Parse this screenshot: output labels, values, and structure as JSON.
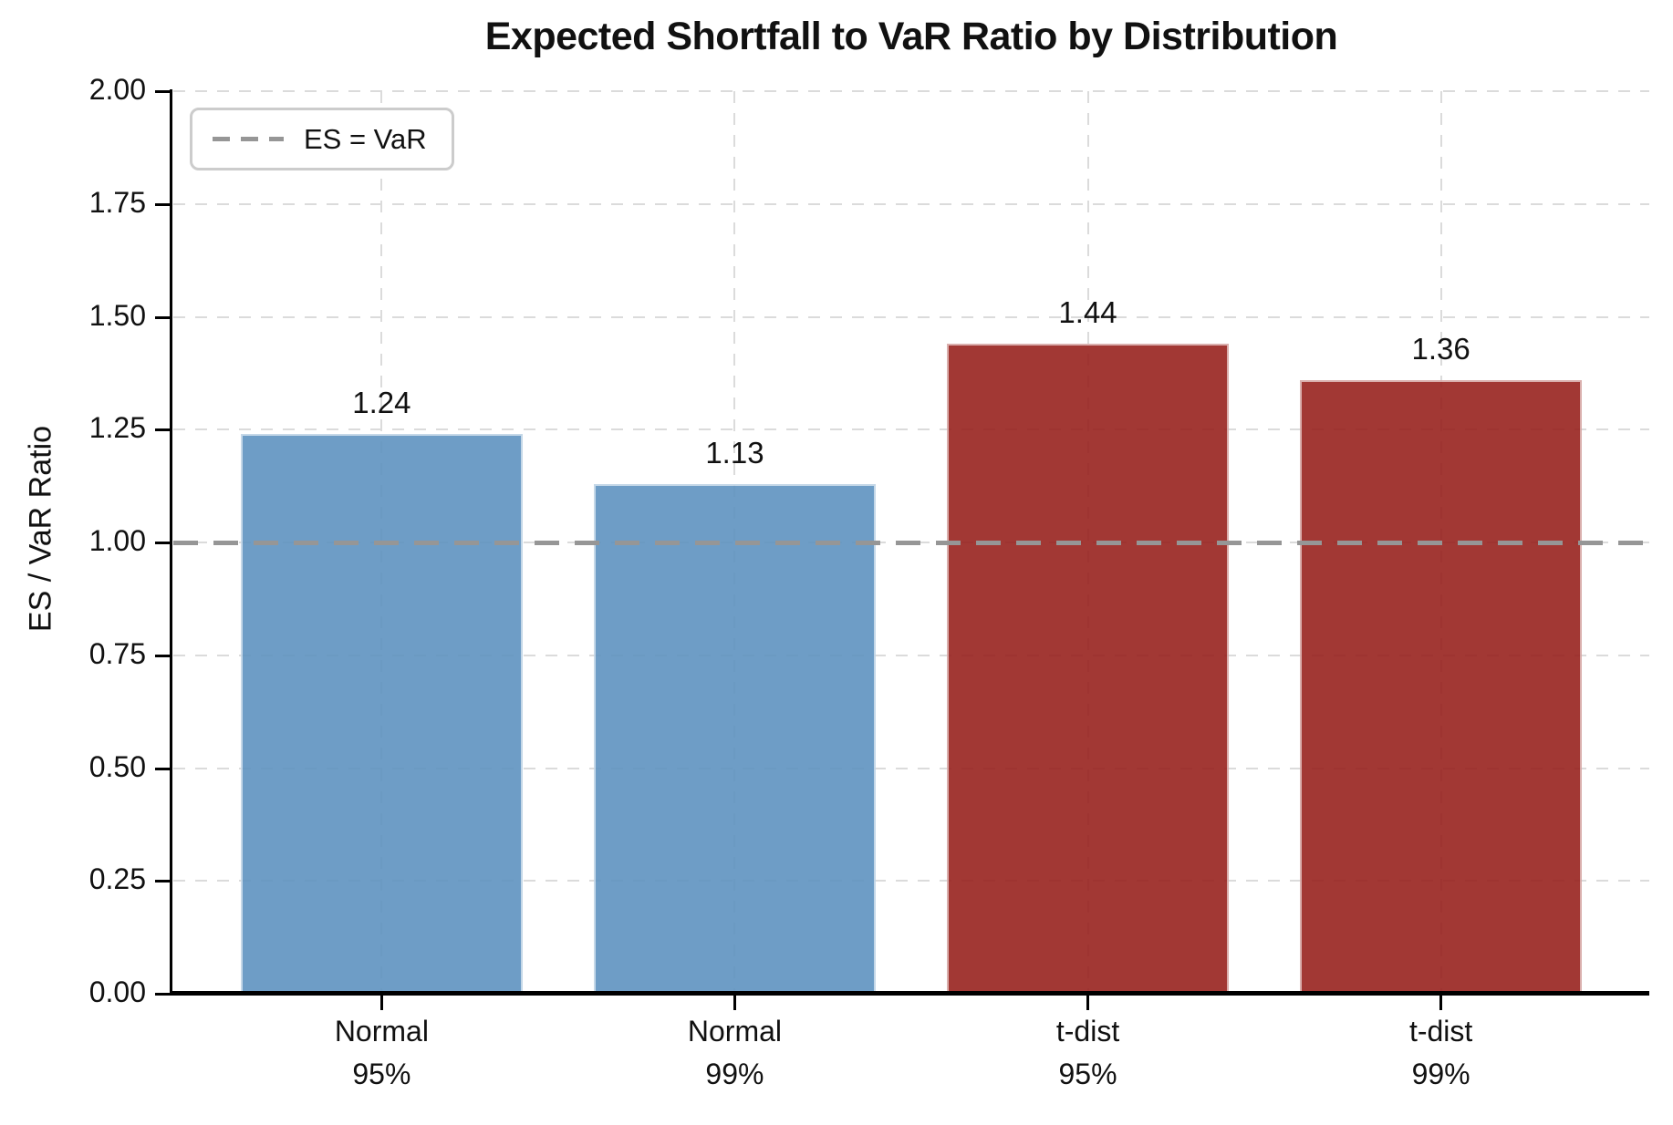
{
  "figure": {
    "background": "#ffffff"
  },
  "chart_data": {
    "type": "bar",
    "title": "Expected Shortfall to VaR Ratio by Distribution",
    "xlabel": "",
    "ylabel": "ES / VaR Ratio",
    "categories": [
      [
        "Normal",
        "95%"
      ],
      [
        "Normal",
        "99%"
      ],
      [
        "t-dist",
        "95%"
      ],
      [
        "t-dist",
        "99%"
      ]
    ],
    "values": [
      1.24,
      1.13,
      1.44,
      1.36
    ],
    "bar_value_labels": [
      "1.24",
      "1.13",
      "1.44",
      "1.36"
    ],
    "bar_colors": [
      "#5F93C0",
      "#5F93C0",
      "#98231F",
      "#98231F"
    ],
    "ylim": [
      0,
      2
    ],
    "ytick_labels": [
      "0.00",
      "0.25",
      "0.50",
      "0.75",
      "1.00",
      "1.25",
      "1.50",
      "1.75",
      "2.00"
    ],
    "grid": "dashed, horizontal and vertical",
    "legend_position": "upper left",
    "reference_line": {
      "y": 1.0,
      "label": "ES = VaR",
      "color": "#969696",
      "style": "dashed"
    },
    "xlim_units": [
      -0.59,
      3.59
    ],
    "bar_width_units": 0.8,
    "colors": {
      "grid": "#DBDBDB",
      "axis": "#000000",
      "text": "#111111",
      "legend_border": "#CCCCCC"
    }
  },
  "legend": {
    "label": "ES = VaR"
  }
}
